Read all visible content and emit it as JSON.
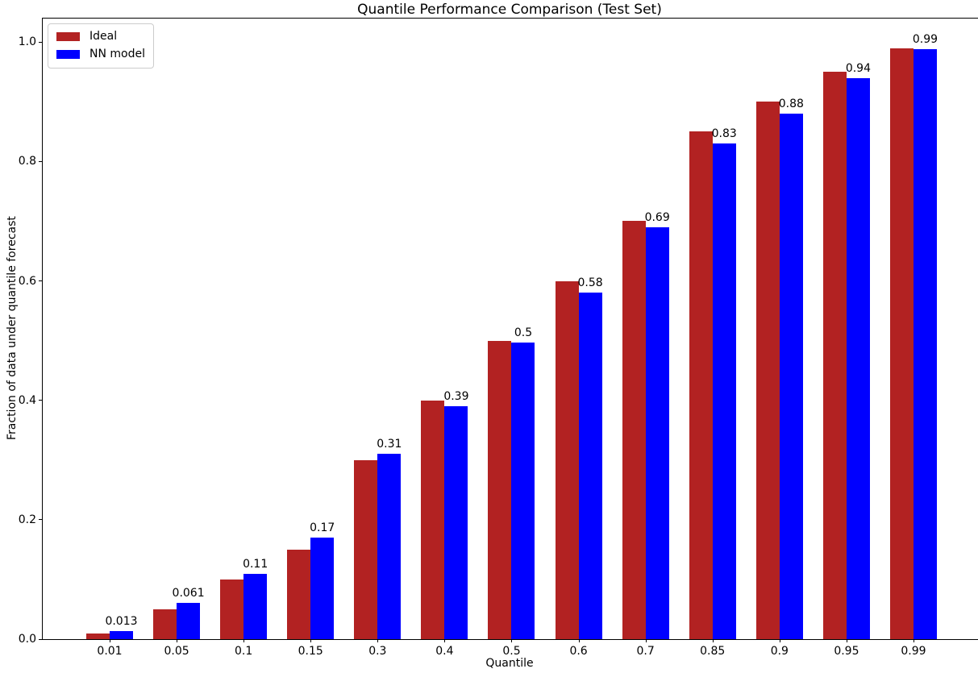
{
  "figure": {
    "title": "Quantile Performance Comparison (Test Set)",
    "xlabel": "Quantile",
    "ylabel": "Fraction of data under quantile forecast"
  },
  "chart_data": {
    "type": "bar",
    "title": "Quantile Performance Comparison (Test Set)",
    "xlabel": "Quantile",
    "ylabel": "Fraction of data under quantile forecast",
    "categories": [
      "0.01",
      "0.05",
      "0.1",
      "0.15",
      "0.3",
      "0.4",
      "0.5",
      "0.6",
      "0.7",
      "0.85",
      "0.9",
      "0.95",
      "0.99"
    ],
    "series": [
      {
        "name": "Ideal",
        "color": "#b22222",
        "values": [
          0.01,
          0.05,
          0.1,
          0.15,
          0.3,
          0.4,
          0.5,
          0.6,
          0.7,
          0.85,
          0.9,
          0.95,
          0.99
        ]
      },
      {
        "name": "NN model",
        "color": "#0000ff",
        "values": [
          0.013,
          0.061,
          0.11,
          0.17,
          0.31,
          0.39,
          0.497,
          0.58,
          0.69,
          0.83,
          0.88,
          0.94,
          0.988
        ],
        "value_labels": [
          "0.013",
          "0.061",
          "0.11",
          "0.17",
          "0.31",
          "0.39",
          "0.5",
          "0.58",
          "0.69",
          "0.83",
          "0.88",
          "0.94",
          "0.99"
        ]
      }
    ],
    "ytick_labels": [
      "0.0",
      "0.2",
      "0.4",
      "0.6",
      "0.8",
      "1.0"
    ],
    "yticks": [
      0.0,
      0.2,
      0.4,
      0.6,
      0.8,
      1.0
    ],
    "ylim": [
      0,
      1.0395
    ],
    "grid": false,
    "legend_position": "upper left",
    "value_labels_on_series": "NN model",
    "background": "#ffffff",
    "spine_color": "#000000"
  }
}
